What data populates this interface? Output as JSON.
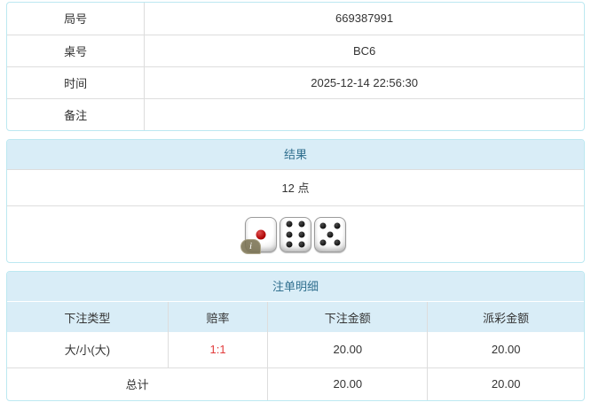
{
  "info_table": {
    "rows": [
      {
        "label": "局号",
        "value": "669387991"
      },
      {
        "label": "桌号",
        "value": "BC6"
      },
      {
        "label": "时间",
        "value": "2025-12-14 22:56:30"
      },
      {
        "label": "备注",
        "value": ""
      }
    ]
  },
  "result_panel": {
    "title": "结果",
    "points": "12 点",
    "dice": [
      1,
      6,
      5
    ],
    "info_badge": "i"
  },
  "bets_panel": {
    "title": "注单明细",
    "columns": [
      "下注类型",
      "赔率",
      "下注金额",
      "派彩金额"
    ],
    "rows": [
      {
        "type": "大/小(大)",
        "odds": "1:1",
        "bet": "20.00",
        "payout": "20.00"
      }
    ],
    "total": {
      "label": "总计",
      "bet": "20.00",
      "payout": "20.00"
    }
  },
  "colors": {
    "panel_border": "#bce8f1",
    "heading_bg": "#d9edf7",
    "heading_text": "#31708f",
    "cell_border": "#dddddd",
    "body_text": "#333333",
    "odds_red": "#e23c3c",
    "die_pip_black": "#111111",
    "die_pip_red": "#aa0000",
    "info_badge_bg": "#7a7252"
  }
}
